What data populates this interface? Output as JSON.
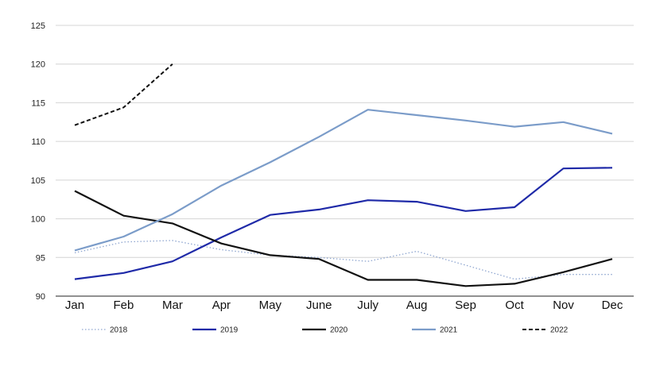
{
  "chart_data": {
    "type": "line",
    "title": "",
    "xlabel": "",
    "ylabel": "",
    "categories": [
      "Jan",
      "Feb",
      "Mar",
      "Apr",
      "May",
      "June",
      "July",
      "Aug",
      "Sep",
      "Oct",
      "Nov",
      "Dec"
    ],
    "ylim": [
      90,
      125
    ],
    "yticks": [
      "90",
      "95",
      "100",
      "105",
      "110",
      "115",
      "120",
      "125"
    ],
    "grid": "horizontal",
    "legend_position": "bottom",
    "series": [
      {
        "name": "2018",
        "color": "#8fa6d0",
        "style": "dotted",
        "values": [
          95.6,
          97.0,
          97.2,
          96.0,
          95.3,
          95.0,
          94.5,
          95.8,
          94.0,
          92.2,
          92.8,
          92.8
        ]
      },
      {
        "name": "2019",
        "color": "#1f2aa8",
        "style": "solid",
        "values": [
          92.2,
          93.0,
          94.5,
          97.6,
          100.5,
          101.2,
          102.4,
          102.2,
          101.0,
          101.5,
          106.5,
          106.6
        ]
      },
      {
        "name": "2020",
        "color": "#111111",
        "style": "solid",
        "values": [
          103.6,
          100.4,
          99.4,
          96.8,
          95.3,
          94.8,
          92.1,
          92.1,
          91.3,
          91.6,
          93.1,
          94.8
        ]
      },
      {
        "name": "2021",
        "color": "#7b9cc9",
        "style": "solid",
        "values": [
          95.9,
          97.7,
          100.6,
          104.3,
          107.3,
          110.6,
          114.1,
          113.4,
          112.7,
          111.9,
          112.5,
          111.0
        ]
      },
      {
        "name": "2022",
        "color": "#111111",
        "style": "dashed",
        "values": [
          112.1,
          114.4,
          120.0,
          null,
          null,
          null,
          null,
          null,
          null,
          null,
          null,
          null
        ]
      }
    ]
  }
}
